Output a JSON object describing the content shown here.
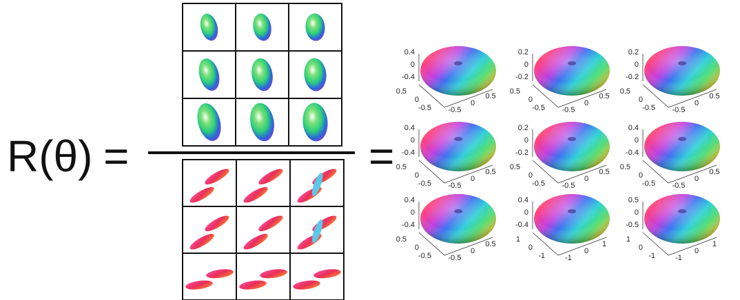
{
  "lhs": "R(θ)",
  "equals": [
    "=",
    "="
  ],
  "plots": [
    {
      "z_ticks": [
        "0.4",
        "0",
        "-0.4"
      ],
      "left_ticks": [
        "0.5",
        "0",
        "-0.5"
      ],
      "right_ticks": [
        "-0.5",
        "0",
        "0.5"
      ]
    },
    {
      "z_ticks": [
        "0.2",
        "0",
        "-0.2"
      ],
      "left_ticks": [
        "0.5",
        "0",
        "-0.5"
      ],
      "right_ticks": [
        "-0.5",
        "0",
        "0.5"
      ]
    },
    {
      "z_ticks": [
        "0.2",
        "0",
        "-0.2"
      ],
      "left_ticks": [
        "0.5",
        "0",
        "-0.5"
      ],
      "right_ticks": [
        "-0.5",
        "0",
        "0.5"
      ]
    },
    {
      "z_ticks": [
        "0.4",
        "0",
        "-0.4"
      ],
      "left_ticks": [
        "0.5",
        "0",
        "-0.5"
      ],
      "right_ticks": [
        "-0.5",
        "0",
        "0.5"
      ]
    },
    {
      "z_ticks": [
        "0.2",
        "0",
        "-0.2"
      ],
      "left_ticks": [
        "0.5",
        "0",
        "-0.5"
      ],
      "right_ticks": [
        "-0.5",
        "0",
        "0.5"
      ]
    },
    {
      "z_ticks": [
        "0.4",
        "0",
        "-0.4"
      ],
      "left_ticks": [
        "0.5",
        "0",
        "-0.5"
      ],
      "right_ticks": [
        "-0.5",
        "0",
        "0.5"
      ]
    },
    {
      "z_ticks": [
        "0.4",
        "0",
        "-0.4"
      ],
      "left_ticks": [
        "0.5",
        "0",
        "-0.5"
      ],
      "right_ticks": [
        "-0.5",
        "0",
        "0.5"
      ]
    },
    {
      "z_ticks": [
        "0.4",
        "0",
        "-0.4"
      ],
      "left_ticks": [
        "1",
        "0",
        "-1"
      ],
      "right_ticks": [
        "-1",
        "0",
        "1"
      ]
    },
    {
      "z_ticks": [
        "0.5",
        "0",
        "-0.5"
      ],
      "left_ticks": [
        "1",
        "0",
        "-1"
      ],
      "right_ticks": [
        "-1",
        "0",
        "1"
      ]
    }
  ]
}
